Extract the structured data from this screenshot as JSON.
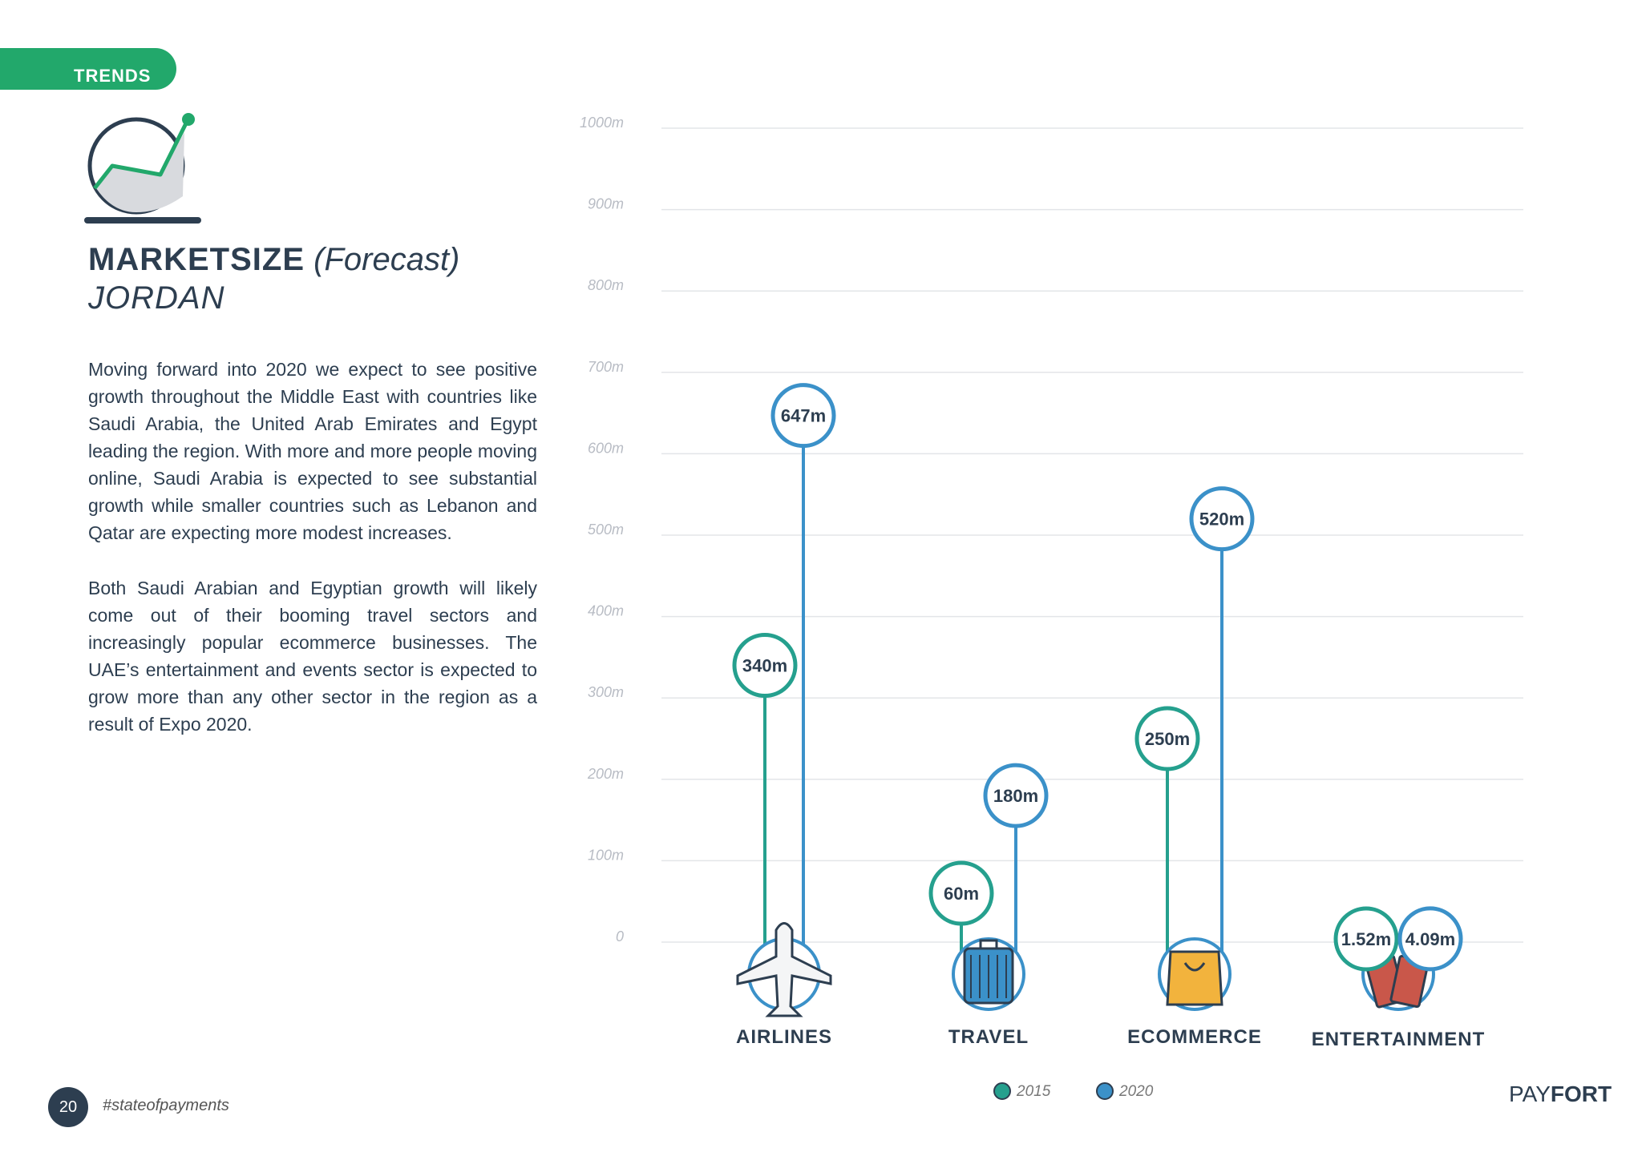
{
  "header": {
    "tab_label": "TRENDS"
  },
  "title": {
    "main": "MARKETSIZE",
    "sub": "(Forecast)",
    "country": "JORDAN"
  },
  "paragraphs": [
    "Moving forward into 2020 we expect to see positive growth throughout the Middle East with countries like Saudi Arabia, the United Arab Emirates and Egypt leading the region. With more and more people moving online, Saudi Arabia is expected to see substantial growth while smaller countries such as Lebanon and Qatar are expecting more modest increases.",
    "Both Saudi Arabian and Egyptian growth will likely come out of their booming travel sectors and increasingly popular ecommerce businesses. The UAE’s entertainment and events sector is expected to grow more than any other sector in the region as a result of Expo 2020."
  ],
  "footer": {
    "page_number": "20",
    "hashtag": "#stateofpayments",
    "logo_a": "PAY",
    "logo_b": "FORT"
  },
  "colors": {
    "s2015": "#25a08e",
    "s2020": "#3b91c9",
    "grid": "#e3e5e8",
    "dark": "#2d3e50",
    "accent": "#22a86b"
  },
  "chart_data": {
    "type": "lollipop",
    "categories": [
      "AIRLINES",
      "TRAVEL",
      "ECOMMERCE",
      "ENTERTAINMENT"
    ],
    "icons": [
      "airplane-icon",
      "suitcase-icon",
      "shopping-bag-icon",
      "tickets-icon"
    ],
    "series": [
      {
        "name": "2015",
        "values": [
          340,
          60,
          250,
          1.52
        ],
        "labels": [
          "340m",
          "60m",
          "250m",
          "1.52m"
        ]
      },
      {
        "name": "2020",
        "values": [
          647,
          180,
          520,
          4.09
        ],
        "labels": [
          "647m",
          "180m",
          "520m",
          "4.09m"
        ]
      }
    ],
    "yticks": [
      "0",
      "100m",
      "200m",
      "300m",
      "400m",
      "500m",
      "600m",
      "700m",
      "800m",
      "900m",
      "1000m"
    ],
    "ylim": [
      0,
      1000
    ],
    "unit": "m",
    "legend": [
      "2015",
      "2020"
    ]
  }
}
